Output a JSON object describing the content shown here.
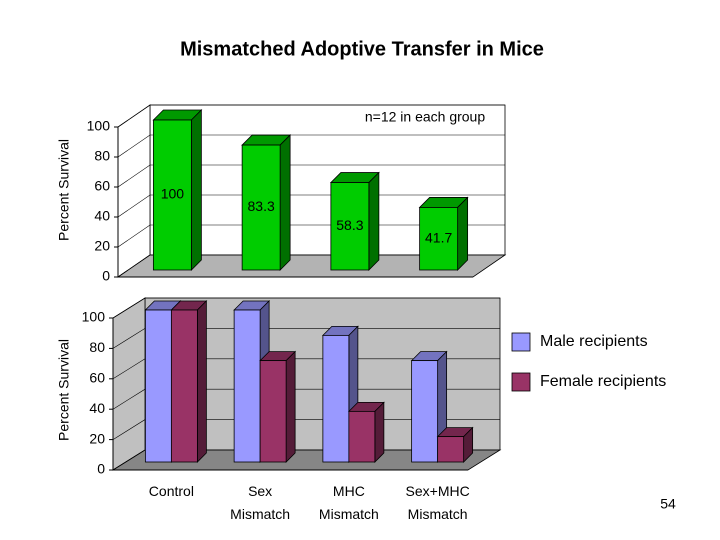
{
  "page_number": "54",
  "chart_data": [
    {
      "type": "bar3d",
      "title": "Mismatched Adoptive Transfer in Mice",
      "annotation": "n=12 in each group",
      "y_label": "Percent Survival",
      "categories": [
        null,
        null,
        null,
        null
      ],
      "values": [
        100,
        83.3,
        58.3,
        41.7
      ],
      "color": "#00cc00",
      "show_value_labels": true,
      "ylim": [
        0,
        100
      ],
      "yticks": [
        0,
        20,
        40,
        60,
        80,
        100
      ],
      "grid": true,
      "wall_color": "#ffffff"
    },
    {
      "type": "grouped_bar3d",
      "y_label": "Percent Survival",
      "categories": [
        "Control",
        "Sex Mismatch",
        "MHC Mismatch",
        "Sex+MHC Mismatch"
      ],
      "series": [
        {
          "name": "Male recipients",
          "color": "#9999ff",
          "values": [
            100,
            100,
            83.3,
            66.7
          ]
        },
        {
          "name": "Female recipients",
          "color": "#993366",
          "values": [
            100,
            66.7,
            33.3,
            16.7
          ]
        }
      ],
      "ylim": [
        0,
        100
      ],
      "yticks": [
        0,
        20,
        40,
        60,
        80,
        100
      ],
      "grid": true,
      "wall_color": "#c0c0c0",
      "legend": "right"
    }
  ]
}
